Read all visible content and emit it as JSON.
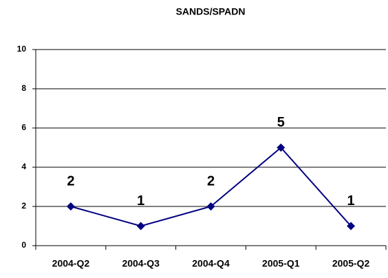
{
  "chart_data": {
    "type": "line",
    "title": "SANDS/SPADN",
    "categories": [
      "2004-Q2",
      "2004-Q3",
      "2004-Q4",
      "2005-Q1",
      "2005-Q2"
    ],
    "series": [
      {
        "name": "SANDS/SPADN",
        "color": "#000080",
        "values": [
          2,
          1,
          2,
          5,
          1
        ]
      }
    ],
    "ylim": [
      0,
      10
    ],
    "yticks": [
      0,
      2,
      4,
      6,
      8,
      10
    ],
    "grid": true
  }
}
